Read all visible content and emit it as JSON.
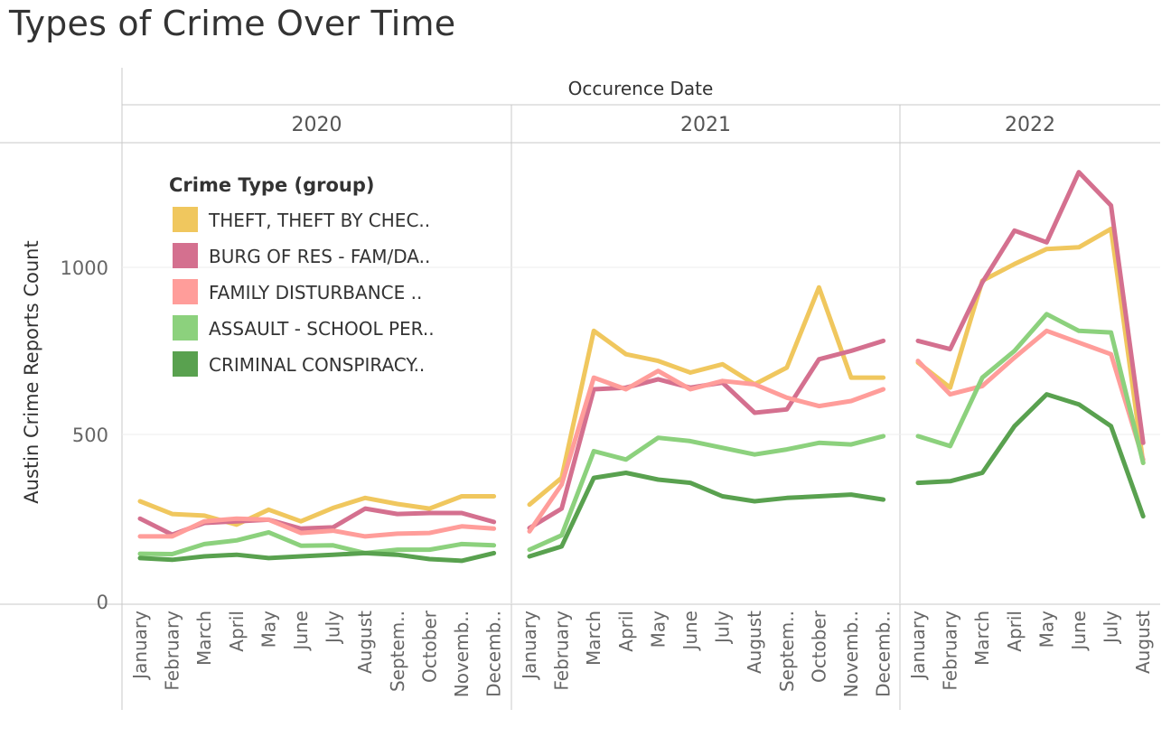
{
  "title": "Types of Crime Over Time",
  "chart_data": {
    "type": "line",
    "title": "Types of Crime Over Time",
    "column_header": "Occurence Date",
    "ylabel": "Austin Crime Reports Count",
    "ylim": [
      0,
      1300
    ],
    "yticks": [
      0,
      500,
      1000
    ],
    "grid": true,
    "legend_placement": "top-left",
    "legend_title": "Crime Type (group)",
    "panels": [
      {
        "year": "2020",
        "months": [
          "January",
          "February",
          "March",
          "April",
          "May",
          "June",
          "July",
          "August",
          "Septem..",
          "October",
          "Novemb..",
          "Decemb.."
        ]
      },
      {
        "year": "2021",
        "months": [
          "January",
          "February",
          "March",
          "April",
          "May",
          "June",
          "July",
          "August",
          "Septem..",
          "October",
          "Novemb..",
          "Decemb.."
        ]
      },
      {
        "year": "2022",
        "months": [
          "January",
          "February",
          "March",
          "April",
          "May",
          "June",
          "July",
          "August"
        ]
      }
    ],
    "series": [
      {
        "name": "THEFT, THEFT BY CHEC..",
        "color": "#F0C75E",
        "values": [
          [
            300,
            262,
            257,
            230,
            275,
            240,
            280,
            310,
            292,
            278,
            315,
            315
          ],
          [
            290,
            370,
            810,
            740,
            720,
            685,
            710,
            650,
            700,
            940,
            670,
            670
          ],
          [
            715,
            640,
            960,
            1010,
            1055,
            1060,
            1115,
            415
          ]
        ]
      },
      {
        "name": "BURG OF RES - FAM/DA..",
        "color": "#D4708F",
        "values": [
          [
            248,
            200,
            235,
            240,
            245,
            218,
            222,
            278,
            262,
            265,
            265,
            238
          ],
          [
            220,
            278,
            635,
            640,
            665,
            640,
            655,
            565,
            575,
            725,
            750,
            780
          ],
          [
            780,
            755,
            955,
            1110,
            1075,
            1285,
            1185,
            475
          ]
        ]
      },
      {
        "name": "FAMILY DISTURBANCE ..",
        "color": "#FF9D9A",
        "values": [
          [
            195,
            195,
            240,
            248,
            245,
            205,
            212,
            195,
            203,
            205,
            225,
            218
          ],
          [
            210,
            350,
            670,
            635,
            690,
            635,
            660,
            650,
            610,
            585,
            600,
            635
          ],
          [
            720,
            620,
            645,
            730,
            810,
            775,
            740,
            425
          ]
        ]
      },
      {
        "name": "ASSAULT - SCHOOL PER..",
        "color": "#8CD17D",
        "values": [
          [
            143,
            142,
            172,
            183,
            207,
            167,
            168,
            145,
            155,
            155,
            172,
            168
          ],
          [
            155,
            198,
            450,
            425,
            490,
            480,
            460,
            440,
            455,
            475,
            470,
            495
          ],
          [
            495,
            465,
            670,
            750,
            860,
            810,
            805,
            415
          ]
        ]
      },
      {
        "name": "CRIMINAL CONSPIRACY..",
        "color": "#59A14F",
        "values": [
          [
            130,
            125,
            135,
            140,
            130,
            135,
            140,
            145,
            140,
            127,
            122,
            145
          ],
          [
            135,
            165,
            370,
            385,
            365,
            355,
            315,
            300,
            310,
            315,
            320,
            305
          ],
          [
            355,
            360,
            385,
            525,
            620,
            590,
            525,
            255
          ]
        ]
      }
    ]
  }
}
